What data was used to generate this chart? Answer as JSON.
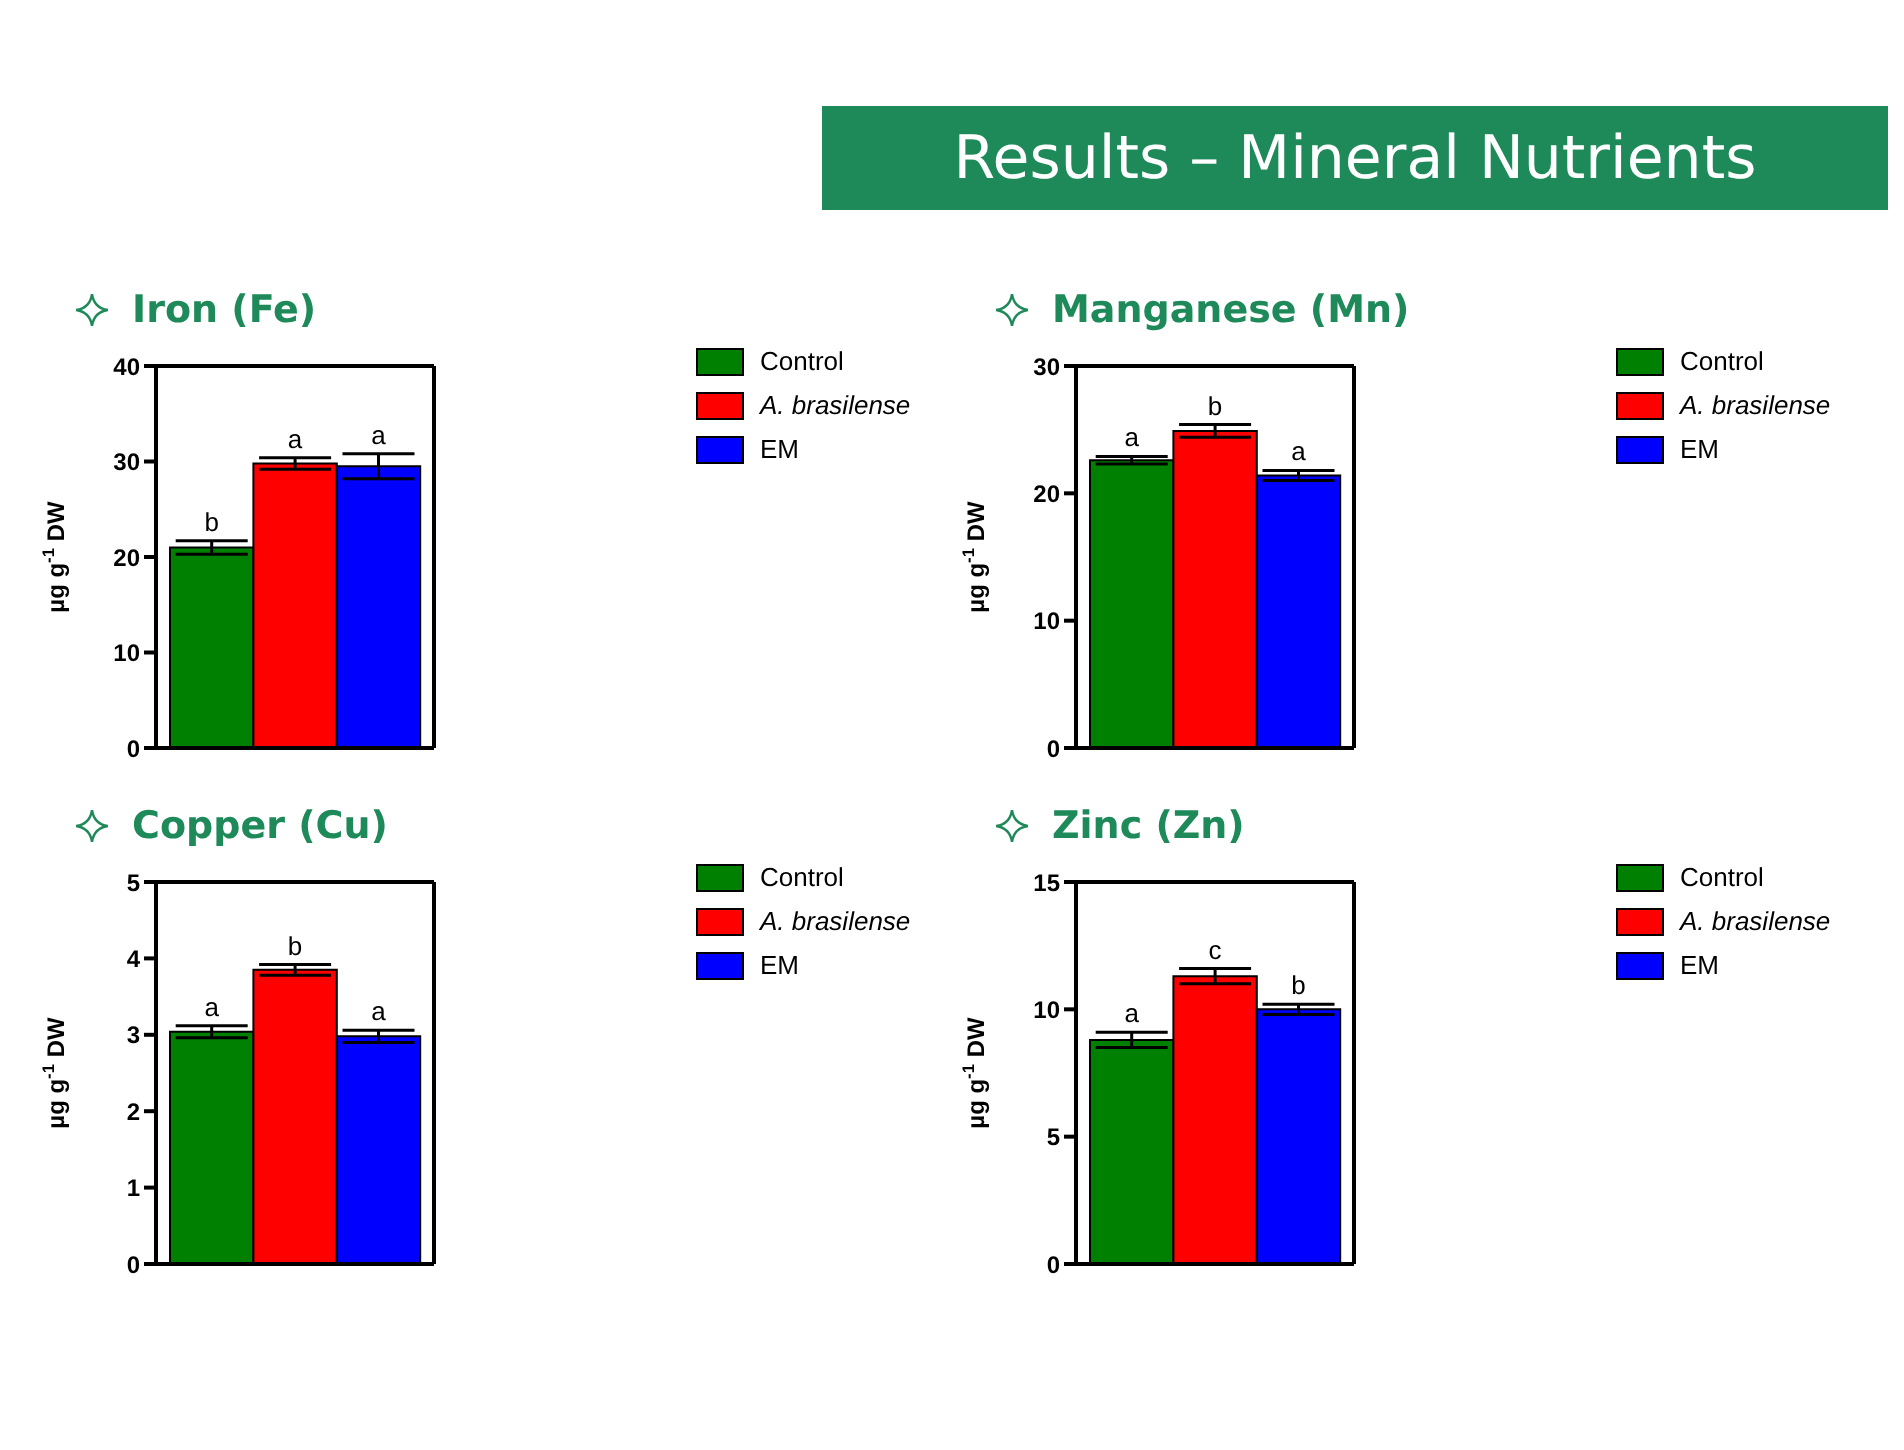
{
  "chart_data": [
    {
      "type": "bar",
      "title": "Iron (Fe)",
      "annotations": [
        "Results – Mineral Nutrients"
      ],
      "ylabel": "µg g$^{-1}$ DW",
      "categories": [
        null
      ],
      "ylim": [
        0,
        40
      ],
      "yticks": [
        0,
        10,
        20,
        30,
        40
      ],
      "grid": false,
      "legend": "right",
      "series": [
        {
          "name": "Control",
          "color": "#008000",
          "values": [
            21.0
          ],
          "errors": [
            0.7
          ],
          "value_labels": [
            "b"
          ]
        },
        {
          "name": "A. brasilense",
          "color": "#ff0000",
          "values": [
            29.8
          ],
          "errors": [
            0.6
          ],
          "value_labels": [
            "a"
          ]
        },
        {
          "name": "EM",
          "color": "#0000ff",
          "values": [
            29.5
          ],
          "errors": [
            1.3
          ],
          "value_labels": [
            "a"
          ]
        }
      ]
    },
    {
      "type": "bar",
      "title": "Manganese (Mn)",
      "ylabel": "µg g$^{-1}$ DW",
      "categories": [
        null
      ],
      "ylim": [
        0,
        30
      ],
      "yticks": [
        0,
        10,
        20,
        30
      ],
      "grid": false,
      "legend": "right",
      "series": [
        {
          "name": "Control",
          "color": "#008000",
          "values": [
            22.6
          ],
          "errors": [
            0.3
          ],
          "value_labels": [
            "a"
          ]
        },
        {
          "name": "A. brasilense",
          "color": "#ff0000",
          "values": [
            24.9
          ],
          "errors": [
            0.5
          ],
          "value_labels": [
            "b"
          ]
        },
        {
          "name": "EM",
          "color": "#0000ff",
          "values": [
            21.4
          ],
          "errors": [
            0.4
          ],
          "value_labels": [
            "a"
          ]
        }
      ]
    },
    {
      "type": "bar",
      "title": "Copper (Cu)",
      "ylabel": "µg g$^{-1}$ DW",
      "categories": [
        null
      ],
      "ylim": [
        0,
        5
      ],
      "yticks": [
        0,
        1,
        2,
        3,
        4,
        5
      ],
      "grid": false,
      "legend": "right",
      "series": [
        {
          "name": "Control",
          "color": "#008000",
          "values": [
            3.04
          ],
          "errors": [
            0.08
          ],
          "value_labels": [
            "a"
          ]
        },
        {
          "name": "A. brasilense",
          "color": "#ff0000",
          "values": [
            3.85
          ],
          "errors": [
            0.07
          ],
          "value_labels": [
            "b"
          ]
        },
        {
          "name": "EM",
          "color": "#0000ff",
          "values": [
            2.98
          ],
          "errors": [
            0.08
          ],
          "value_labels": [
            "a"
          ]
        }
      ]
    },
    {
      "type": "bar",
      "title": "Zinc (Zn)",
      "ylabel": "µg g$^{-1}$ DW",
      "categories": [
        null
      ],
      "ylim": [
        0,
        15
      ],
      "yticks": [
        0,
        5,
        10,
        15
      ],
      "grid": false,
      "legend": "right",
      "series": [
        {
          "name": "Control",
          "color": "#008000",
          "values": [
            8.8
          ],
          "errors": [
            0.3
          ],
          "value_labels": [
            "a"
          ]
        },
        {
          "name": "A. brasilense",
          "color": "#ff0000",
          "values": [
            11.3
          ],
          "errors": [
            0.3
          ],
          "value_labels": [
            "c"
          ]
        },
        {
          "name": "EM",
          "color": "#0000ff",
          "values": [
            10.0
          ],
          "errors": [
            0.2
          ],
          "value_labels": [
            "b"
          ]
        }
      ]
    }
  ]
}
